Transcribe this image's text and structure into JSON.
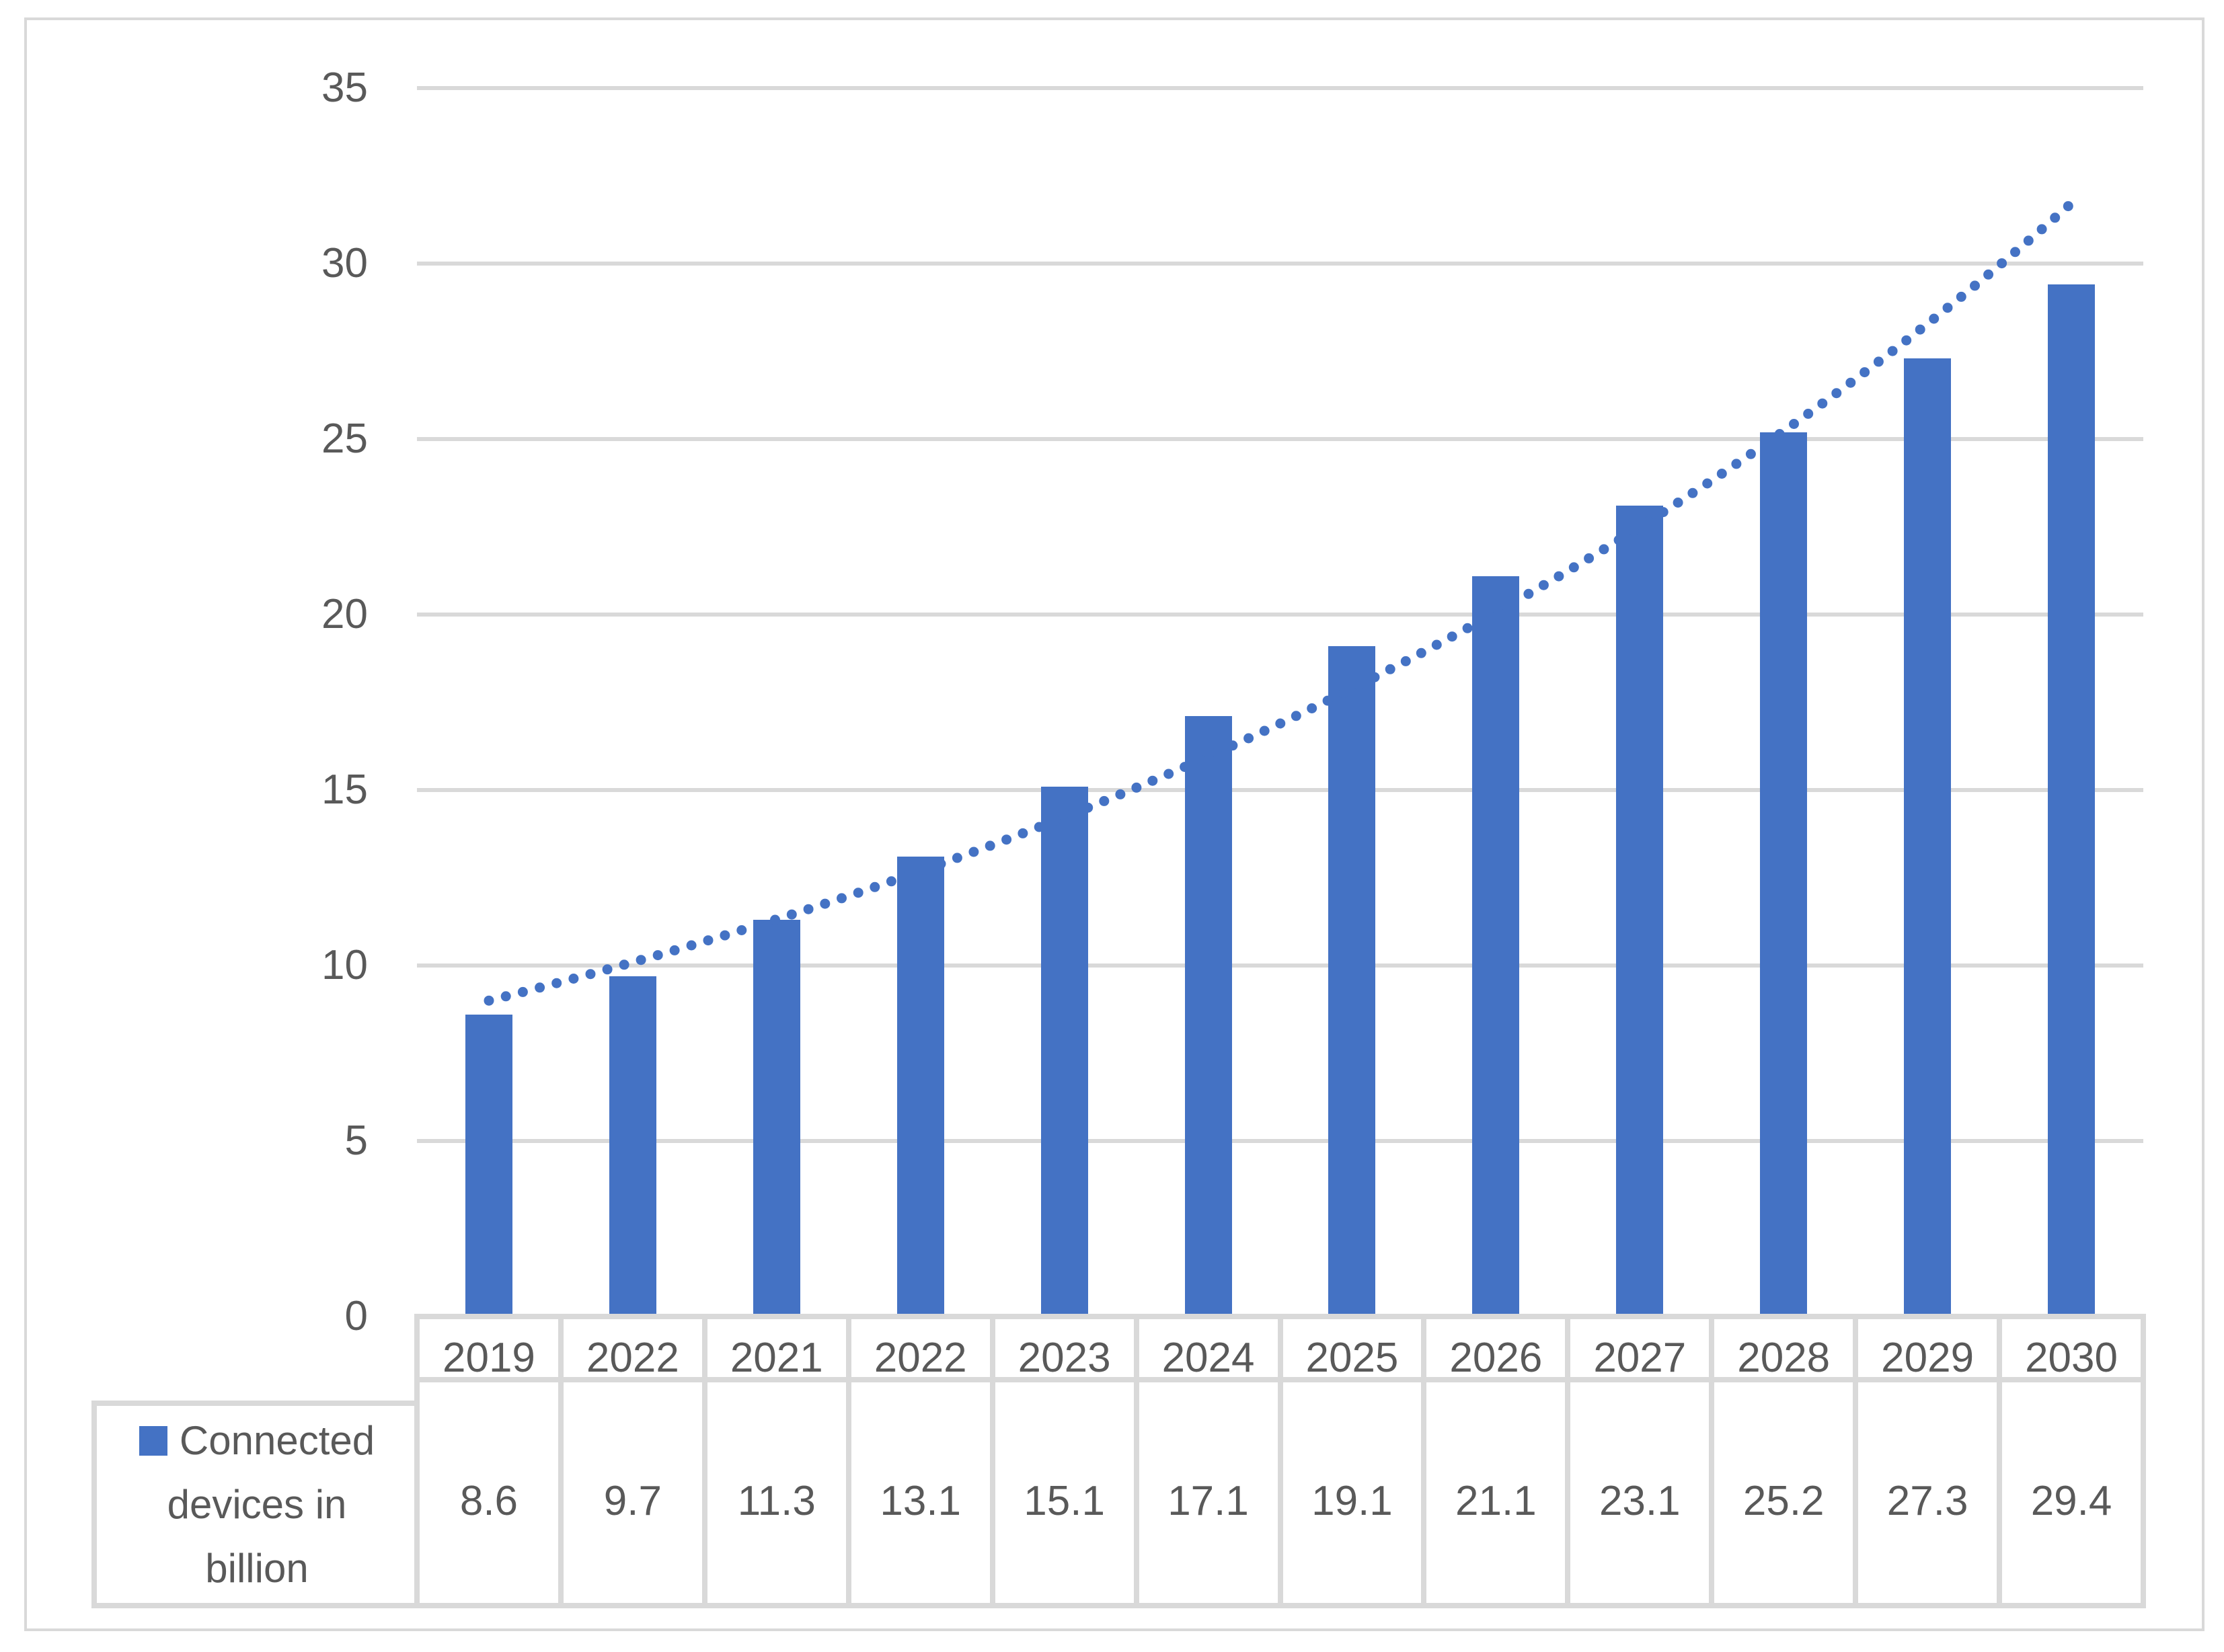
{
  "legend": {
    "label_lines": [
      "Connected",
      "devices in",
      "billion"
    ]
  },
  "colors": {
    "series": "#4472c4",
    "trend": "#4472c4",
    "grid": "#d9d9d9",
    "table_border": "#d9d9d9",
    "text": "#595959",
    "frame": "#d9d9d9"
  },
  "chart_data": {
    "type": "bar",
    "title": "",
    "xlabel": "",
    "ylabel": "",
    "categories": [
      "2019",
      "2022",
      "2021",
      "2022",
      "2023",
      "2024",
      "2025",
      "2026",
      "2027",
      "2028",
      "2029",
      "2030"
    ],
    "series": [
      {
        "name": "Connected devices in billion",
        "values": [
          8.6,
          9.7,
          11.3,
          13.1,
          15.1,
          17.1,
          19.1,
          21.1,
          23.1,
          25.2,
          27.3,
          29.4
        ],
        "color": "#4472c4"
      }
    ],
    "value_labels": [
      "8.6",
      "9.7",
      "11.3",
      "13.1",
      "15.1",
      "17.1",
      "19.1",
      "21.1",
      "23.1",
      "25.2",
      "27.3",
      "29.4"
    ],
    "ylim": [
      0,
      35
    ],
    "y_ticks": [
      0,
      5,
      10,
      15,
      20,
      25,
      30,
      35
    ],
    "grid": true,
    "data_table": true,
    "legend_position": "data-table-left",
    "trendline": {
      "style": "dotted",
      "color": "#4472c4",
      "interpolation": "exponential",
      "start_value": 9.0,
      "end_value": 31.8
    }
  }
}
